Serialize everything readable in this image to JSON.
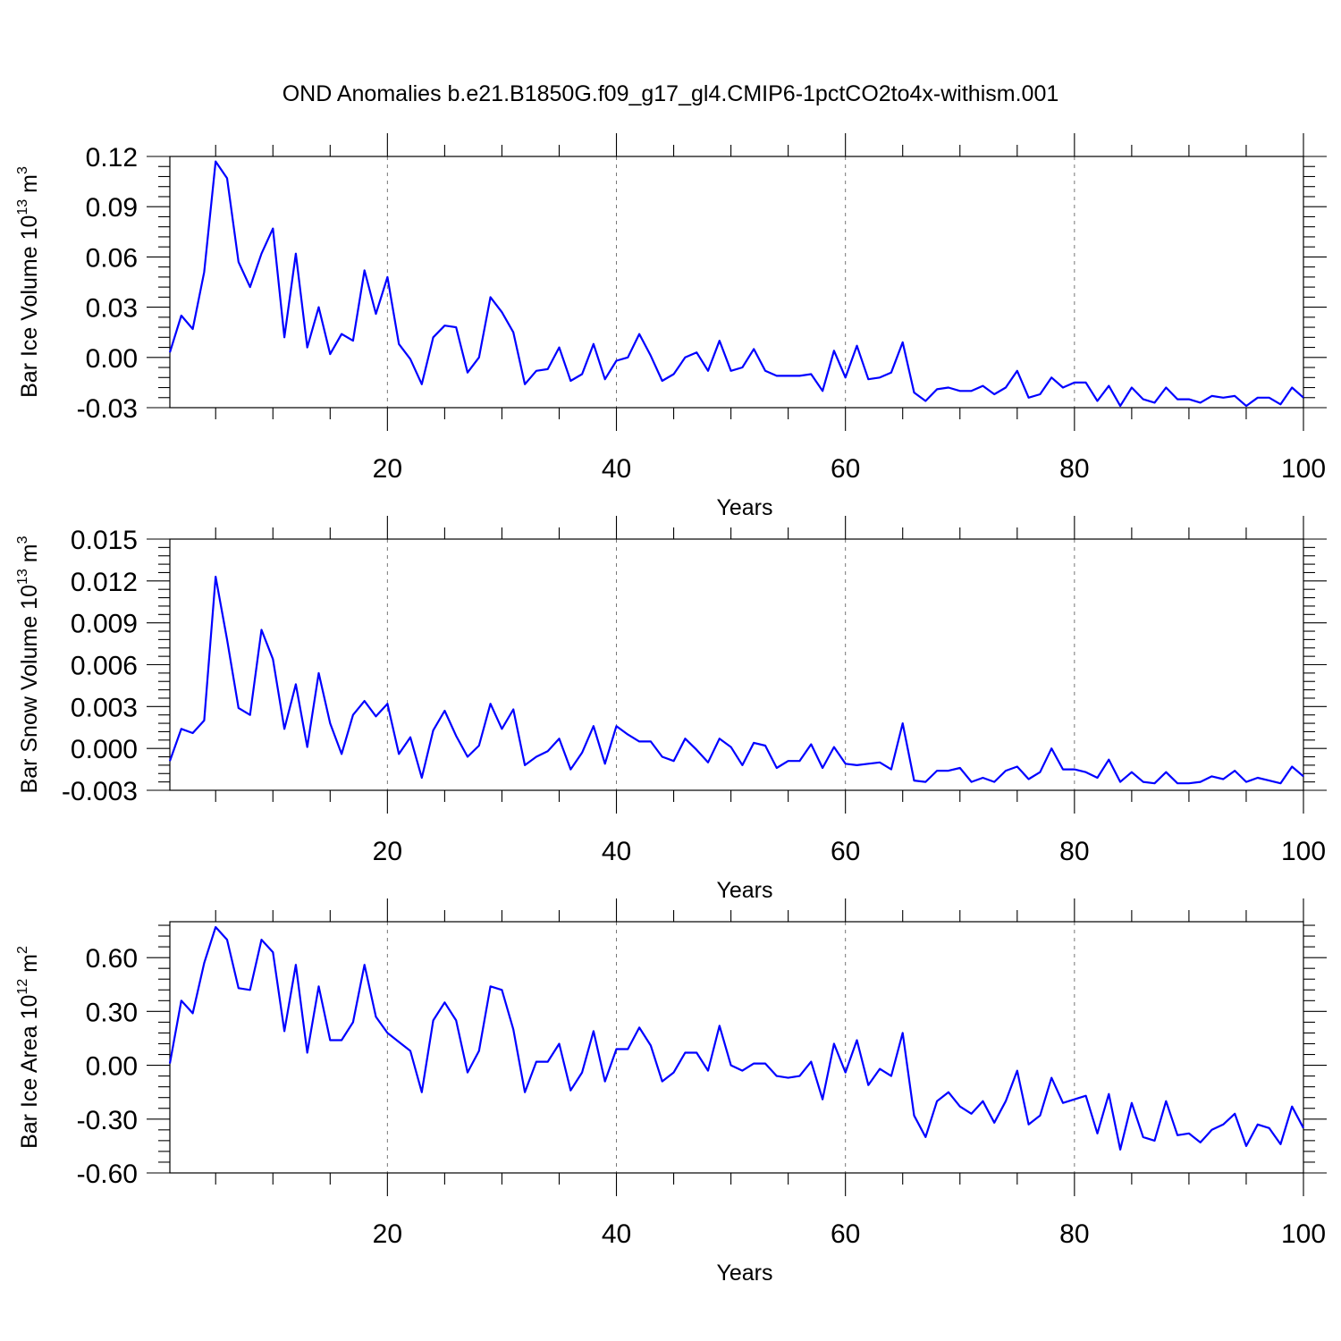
{
  "title": "OND Anomalies b.e21.B1850G.f09_g17_gl4.CMIP6-1pctCO2to4x-withism.001",
  "colors": {
    "line": "#0000ff",
    "grid": "#777777",
    "axis": "#000000"
  },
  "chart_data": [
    {
      "type": "line",
      "xlabel": "Years",
      "ylabel_main": "Bar Ice Volume 10",
      "ylabel_exp": "13",
      "ylabel_unit": " m",
      "ylabel_unit_exp": "3",
      "xlim": [
        1,
        100
      ],
      "ylim": [
        -0.03,
        0.12
      ],
      "x_ticks": [
        20,
        40,
        60,
        80,
        100
      ],
      "x_tick_labels": [
        "20",
        "40",
        "60",
        "80",
        "100"
      ],
      "y_ticks": [
        -0.03,
        0.0,
        0.03,
        0.06,
        0.09,
        0.12
      ],
      "y_tick_labels": [
        "-0.03",
        "0.00",
        "0.03",
        "0.06",
        "0.09",
        "0.12"
      ],
      "grid": "vertical dashed at major x ticks",
      "series": [
        {
          "x": [
            1,
            2,
            3,
            4,
            5,
            6,
            7,
            8,
            9,
            10,
            11,
            12,
            13,
            14,
            15,
            16,
            17,
            18,
            19,
            20,
            21,
            22,
            23,
            24,
            25,
            26,
            27,
            28,
            29,
            30,
            31,
            32,
            33,
            34,
            35,
            36,
            37,
            38,
            39,
            40,
            41,
            42,
            43,
            44,
            45,
            46,
            47,
            48,
            49,
            50,
            51,
            52,
            53,
            54,
            55,
            56,
            57,
            58,
            59,
            60,
            61,
            62,
            63,
            64,
            65,
            66,
            67,
            68,
            69,
            70,
            71,
            72,
            73,
            74,
            75,
            76,
            77,
            78,
            79,
            80,
            81,
            82,
            83,
            84,
            85,
            86,
            87,
            88,
            89,
            90,
            91,
            92,
            93,
            94,
            95,
            96,
            97,
            98,
            99,
            100
          ],
          "values": [
            0.003,
            0.025,
            0.017,
            0.051,
            0.117,
            0.107,
            0.057,
            0.042,
            0.062,
            0.077,
            0.012,
            0.062,
            0.006,
            0.03,
            0.002,
            0.014,
            0.01,
            0.052,
            0.026,
            0.048,
            0.008,
            -0.001,
            -0.016,
            0.012,
            0.019,
            0.018,
            -0.009,
            0.0,
            0.036,
            0.027,
            0.015,
            -0.016,
            -0.008,
            -0.007,
            0.006,
            -0.014,
            -0.01,
            0.008,
            -0.013,
            -0.002,
            0.0,
            0.014,
            0.001,
            -0.014,
            -0.01,
            0.0,
            0.003,
            -0.008,
            0.01,
            -0.008,
            -0.006,
            0.005,
            -0.008,
            -0.011,
            -0.011,
            -0.011,
            -0.01,
            -0.02,
            0.004,
            -0.012,
            0.007,
            -0.013,
            -0.012,
            -0.009,
            0.009,
            -0.021,
            -0.026,
            -0.019,
            -0.018,
            -0.02,
            -0.02,
            -0.017,
            -0.022,
            -0.018,
            -0.008,
            -0.024,
            -0.022,
            -0.012,
            -0.018,
            -0.015,
            -0.015,
            -0.026,
            -0.017,
            -0.029,
            -0.018,
            -0.025,
            -0.027,
            -0.018,
            -0.025,
            -0.025,
            -0.027,
            -0.023,
            -0.024,
            -0.023,
            -0.029,
            -0.024,
            -0.024,
            -0.028,
            -0.018,
            -0.024
          ]
        }
      ]
    },
    {
      "type": "line",
      "xlabel": "Years",
      "ylabel_main": "Bar Snow Volume 10",
      "ylabel_exp": "13",
      "ylabel_unit": " m",
      "ylabel_unit_exp": "3",
      "xlim": [
        1,
        100
      ],
      "ylim": [
        -0.003,
        0.015
      ],
      "x_ticks": [
        20,
        40,
        60,
        80,
        100
      ],
      "x_tick_labels": [
        "20",
        "40",
        "60",
        "80",
        "100"
      ],
      "y_ticks": [
        -0.003,
        0.0,
        0.003,
        0.006,
        0.009,
        0.012,
        0.015
      ],
      "y_tick_labels": [
        "-0.003",
        "0.000",
        "0.003",
        "0.006",
        "0.009",
        "0.012",
        "0.015"
      ],
      "grid": "vertical dashed at major x ticks",
      "series": [
        {
          "x": [
            1,
            2,
            3,
            4,
            5,
            6,
            7,
            8,
            9,
            10,
            11,
            12,
            13,
            14,
            15,
            16,
            17,
            18,
            19,
            20,
            21,
            22,
            23,
            24,
            25,
            26,
            27,
            28,
            29,
            30,
            31,
            32,
            33,
            34,
            35,
            36,
            37,
            38,
            39,
            40,
            41,
            42,
            43,
            44,
            45,
            46,
            47,
            48,
            49,
            50,
            51,
            52,
            53,
            54,
            55,
            56,
            57,
            58,
            59,
            60,
            61,
            62,
            63,
            64,
            65,
            66,
            67,
            68,
            69,
            70,
            71,
            72,
            73,
            74,
            75,
            76,
            77,
            78,
            79,
            80,
            81,
            82,
            83,
            84,
            85,
            86,
            87,
            88,
            89,
            90,
            91,
            92,
            93,
            94,
            95,
            96,
            97,
            98,
            99,
            100
          ],
          "values": [
            -0.0009,
            0.0014,
            0.0011,
            0.002,
            0.0123,
            0.0078,
            0.0029,
            0.0024,
            0.0085,
            0.0064,
            0.0014,
            0.0046,
            0.0001,
            0.0054,
            0.0018,
            -0.0004,
            0.0024,
            0.0034,
            0.0023,
            0.0032,
            -0.0004,
            0.0008,
            -0.0021,
            0.0013,
            0.0027,
            0.0009,
            -0.0006,
            0.0002,
            0.0032,
            0.0014,
            0.0028,
            -0.0012,
            -0.0006,
            -0.0002,
            0.0007,
            -0.0015,
            -0.0003,
            0.0016,
            -0.0011,
            0.0016,
            0.001,
            0.0005,
            0.0005,
            -0.0006,
            -0.0009,
            0.0007,
            -0.0001,
            -0.001,
            0.0007,
            0.0001,
            -0.0012,
            0.0004,
            0.0002,
            -0.0014,
            -0.0009,
            -0.0009,
            0.0003,
            -0.0014,
            0.0001,
            -0.0011,
            -0.0012,
            -0.0011,
            -0.001,
            -0.0015,
            0.0018,
            -0.0023,
            -0.0024,
            -0.0016,
            -0.0016,
            -0.0014,
            -0.0024,
            -0.0021,
            -0.0024,
            -0.0016,
            -0.0013,
            -0.0022,
            -0.0017,
            0.0,
            -0.0015,
            -0.0015,
            -0.0017,
            -0.0021,
            -0.0008,
            -0.0024,
            -0.0017,
            -0.0024,
            -0.0025,
            -0.0017,
            -0.0025,
            -0.0025,
            -0.0024,
            -0.002,
            -0.0022,
            -0.0016,
            -0.0024,
            -0.0021,
            -0.0023,
            -0.0025,
            -0.0013,
            -0.002
          ]
        }
      ]
    },
    {
      "type": "line",
      "xlabel": "Years",
      "ylabel_main": "Bar Ice Area 10",
      "ylabel_exp": "12",
      "ylabel_unit": " m",
      "ylabel_unit_exp": "2",
      "xlim": [
        1,
        100
      ],
      "ylim": [
        -0.6,
        0.8
      ],
      "x_ticks": [
        20,
        40,
        60,
        80,
        100
      ],
      "x_tick_labels": [
        "20",
        "40",
        "60",
        "80",
        "100"
      ],
      "y_ticks": [
        -0.6,
        -0.3,
        0.0,
        0.3,
        0.6
      ],
      "y_tick_labels": [
        "-0.60",
        "-0.30",
        "0.00",
        "0.30",
        "0.60"
      ],
      "grid": "vertical dashed at major x ticks",
      "series": [
        {
          "x": [
            1,
            2,
            3,
            4,
            5,
            6,
            7,
            8,
            9,
            10,
            11,
            12,
            13,
            14,
            15,
            16,
            17,
            18,
            19,
            20,
            21,
            22,
            23,
            24,
            25,
            26,
            27,
            28,
            29,
            30,
            31,
            32,
            33,
            34,
            35,
            36,
            37,
            38,
            39,
            40,
            41,
            42,
            43,
            44,
            45,
            46,
            47,
            48,
            49,
            50,
            51,
            52,
            53,
            54,
            55,
            56,
            57,
            58,
            59,
            60,
            61,
            62,
            63,
            64,
            65,
            66,
            67,
            68,
            69,
            70,
            71,
            72,
            73,
            74,
            75,
            76,
            77,
            78,
            79,
            80,
            81,
            82,
            83,
            84,
            85,
            86,
            87,
            88,
            89,
            90,
            91,
            92,
            93,
            94,
            95,
            96,
            97,
            98,
            99,
            100
          ],
          "values": [
            0.01,
            0.36,
            0.29,
            0.57,
            0.77,
            0.7,
            0.43,
            0.42,
            0.7,
            0.63,
            0.19,
            0.56,
            0.07,
            0.44,
            0.14,
            0.14,
            0.24,
            0.56,
            0.27,
            0.18,
            0.13,
            0.08,
            -0.15,
            0.25,
            0.35,
            0.25,
            -0.04,
            0.08,
            0.44,
            0.42,
            0.2,
            -0.15,
            0.02,
            0.02,
            0.12,
            -0.14,
            -0.04,
            0.19,
            -0.09,
            0.09,
            0.09,
            0.21,
            0.11,
            -0.09,
            -0.04,
            0.07,
            0.07,
            -0.03,
            0.22,
            0.0,
            -0.03,
            0.01,
            0.01,
            -0.06,
            -0.07,
            -0.06,
            0.02,
            -0.19,
            0.12,
            -0.04,
            0.14,
            -0.11,
            -0.02,
            -0.06,
            0.18,
            -0.28,
            -0.4,
            -0.2,
            -0.15,
            -0.23,
            -0.27,
            -0.2,
            -0.32,
            -0.2,
            -0.03,
            -0.33,
            -0.28,
            -0.07,
            -0.21,
            -0.19,
            -0.17,
            -0.38,
            -0.16,
            -0.47,
            -0.21,
            -0.4,
            -0.42,
            -0.2,
            -0.39,
            -0.38,
            -0.43,
            -0.36,
            -0.33,
            -0.27,
            -0.45,
            -0.33,
            -0.35,
            -0.44,
            -0.23,
            -0.35
          ]
        }
      ]
    }
  ]
}
